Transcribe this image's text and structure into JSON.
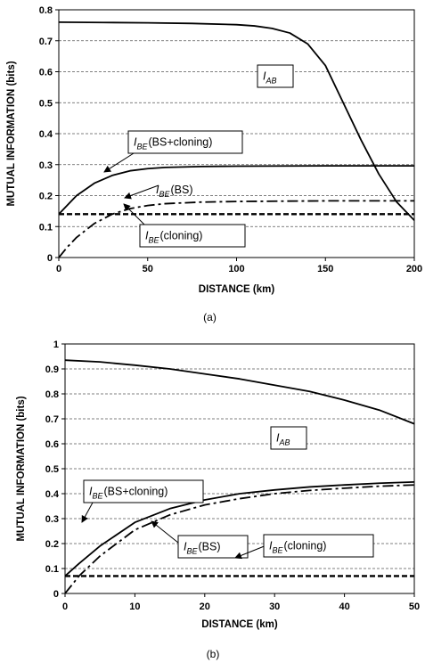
{
  "chart_data": [
    {
      "type": "line",
      "panel_label": "(a)",
      "xlabel": "DISTANCE (km)",
      "ylabel": "MUTUAL INFORMATION (bits)",
      "xlim": [
        0,
        200
      ],
      "ylim": [
        0,
        0.8
      ],
      "xticks": [
        "0",
        "50",
        "100",
        "150",
        "200"
      ],
      "yticks": [
        "0",
        "0.1",
        "0.2",
        "0.3",
        "0.4",
        "0.5",
        "0.6",
        "0.7",
        "0.8"
      ],
      "grid": "horizontal dashed",
      "series": [
        {
          "name": "I_AB",
          "style": "solid",
          "x": [
            0,
            25,
            50,
            75,
            100,
            110,
            120,
            130,
            140,
            150,
            160,
            170,
            180,
            190,
            200
          ],
          "y": [
            0.76,
            0.759,
            0.758,
            0.756,
            0.752,
            0.748,
            0.74,
            0.725,
            0.69,
            0.62,
            0.5,
            0.38,
            0.27,
            0.18,
            0.12
          ]
        },
        {
          "name": "I_BE (BS+cloning)",
          "style": "solid",
          "x": [
            0,
            5,
            10,
            20,
            30,
            40,
            50,
            60,
            80,
            100,
            150,
            200
          ],
          "y": [
            0.14,
            0.17,
            0.2,
            0.24,
            0.265,
            0.28,
            0.287,
            0.291,
            0.294,
            0.295,
            0.296,
            0.296
          ]
        },
        {
          "name": "I_BE (BS)",
          "style": "dash-dot",
          "x": [
            0,
            5,
            10,
            20,
            30,
            40,
            50,
            60,
            80,
            100,
            150,
            200
          ],
          "y": [
            0,
            0.035,
            0.065,
            0.11,
            0.14,
            0.158,
            0.168,
            0.174,
            0.179,
            0.181,
            0.183,
            0.183
          ]
        },
        {
          "name": "I_BE (cloning)",
          "style": "dashed",
          "x": [
            0,
            50,
            100,
            150,
            200
          ],
          "y": [
            0.14,
            0.14,
            0.14,
            0.14,
            0.14
          ]
        }
      ],
      "annotations": [
        {
          "main": "I",
          "sub": "AB",
          "suffix": "",
          "boxed": true,
          "arrow": false
        },
        {
          "main": "I",
          "sub": "BE",
          "suffix": "(BS+cloning)",
          "boxed": true,
          "arrow": true
        },
        {
          "main": "I",
          "sub": "BE",
          "suffix": "(BS)",
          "boxed": false,
          "arrow": true
        },
        {
          "main": "I",
          "sub": "BE",
          "suffix": "(cloning)",
          "boxed": true,
          "arrow": true
        }
      ]
    },
    {
      "type": "line",
      "panel_label": "(b)",
      "xlabel": "DISTANCE (km)",
      "ylabel": "MUTUAL INFORMATION (bits)",
      "xlim": [
        0,
        50
      ],
      "ylim": [
        0,
        1
      ],
      "xticks": [
        "0",
        "10",
        "20",
        "30",
        "40",
        "50"
      ],
      "yticks": [
        "0",
        "0.1",
        "0.2",
        "0.3",
        "0.4",
        "0.5",
        "0.6",
        "0.7",
        "0.8",
        "0.9",
        "1"
      ],
      "grid": "horizontal dashed",
      "series": [
        {
          "name": "I_AB",
          "style": "solid",
          "x": [
            0,
            5,
            10,
            15,
            20,
            25,
            30,
            35,
            40,
            45,
            50
          ],
          "y": [
            0.935,
            0.928,
            0.915,
            0.9,
            0.88,
            0.86,
            0.835,
            0.81,
            0.775,
            0.735,
            0.68
          ]
        },
        {
          "name": "I_BE (BS+cloning)",
          "style": "solid",
          "x": [
            0,
            2,
            5,
            10,
            15,
            20,
            25,
            30,
            35,
            40,
            45,
            50
          ],
          "y": [
            0.07,
            0.12,
            0.19,
            0.285,
            0.34,
            0.375,
            0.4,
            0.415,
            0.427,
            0.435,
            0.442,
            0.447
          ]
        },
        {
          "name": "I_BE (BS)",
          "style": "dash-dot",
          "x": [
            0,
            2,
            5,
            10,
            15,
            20,
            25,
            30,
            35,
            40,
            45,
            50
          ],
          "y": [
            0,
            0.07,
            0.15,
            0.255,
            0.315,
            0.355,
            0.38,
            0.4,
            0.413,
            0.422,
            0.43,
            0.435
          ]
        },
        {
          "name": "I_BE (cloning)",
          "style": "dashed",
          "x": [
            0,
            10,
            20,
            30,
            40,
            50
          ],
          "y": [
            0.07,
            0.07,
            0.07,
            0.07,
            0.07,
            0.07
          ]
        }
      ],
      "annotations": [
        {
          "main": "I",
          "sub": "AB",
          "suffix": "",
          "boxed": true,
          "arrow": false
        },
        {
          "main": "I",
          "sub": "BE",
          "suffix": "(BS+cloning)",
          "boxed": true,
          "arrow": true
        },
        {
          "main": "I",
          "sub": "BE",
          "suffix": "(BS)",
          "boxed": true,
          "arrow": true
        },
        {
          "main": "I",
          "sub": "BE",
          "suffix": "(cloning)",
          "boxed": true,
          "arrow": true
        }
      ]
    }
  ]
}
